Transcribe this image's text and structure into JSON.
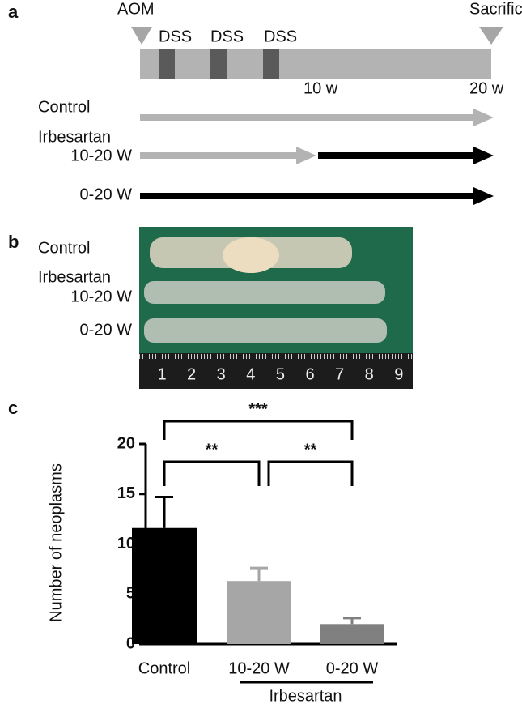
{
  "panel_a": {
    "label": "a",
    "start": "AOM",
    "end": "Sacrifice",
    "dss": [
      "DSS",
      "DSS",
      "DSS"
    ],
    "weeks": [
      "10 w",
      "20 w"
    ],
    "control": "Control",
    "drug": "Irbesartan",
    "late": "10-20 W",
    "full": "0-20 W"
  },
  "panel_b": {
    "label": "b",
    "control": "Control",
    "drug": "Irbesartan",
    "late": "10-20 W",
    "full": "0-20 W",
    "ruler": [
      1,
      2,
      3,
      4,
      5,
      6,
      7,
      8,
      9
    ]
  },
  "panel_label_c": "c",
  "chart_data": {
    "type": "bar",
    "ylabel": "Number of neoplasms",
    "categories": [
      "Control",
      "10-20 W",
      "0-20 W"
    ],
    "values": [
      11.6,
      6.3,
      2.0
    ],
    "errors": [
      3.1,
      1.3,
      0.6
    ],
    "colors": [
      "#000000",
      "#a6a6a6",
      "#808080"
    ],
    "ylim": [
      0,
      20
    ],
    "yticks": [
      0,
      5,
      10,
      15,
      20
    ],
    "group_label": "Irbesartan",
    "group": [
      "10-20 W",
      "0-20 W"
    ],
    "significance": [
      {
        "label": "***",
        "between": [
          "Control",
          "0-20 W"
        ]
      },
      {
        "label": "**",
        "between": [
          "Control",
          "10-20 W"
        ]
      },
      {
        "label": "**",
        "between": [
          "10-20 W",
          "0-20 W"
        ]
      }
    ]
  }
}
